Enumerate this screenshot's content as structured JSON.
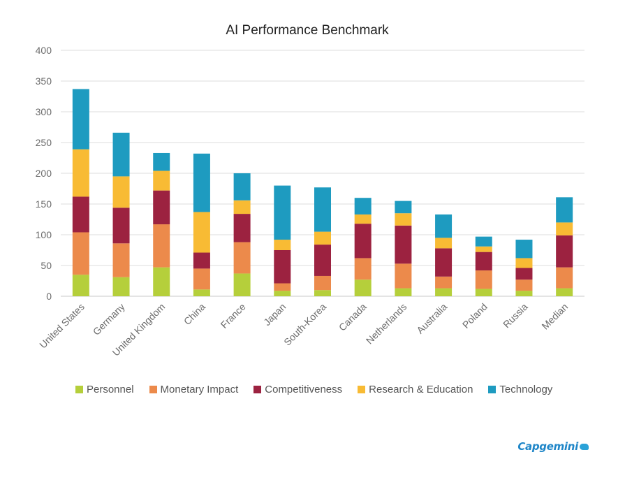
{
  "chart_data": {
    "type": "bar",
    "stacked": true,
    "title": "AI Performance Benchmark",
    "xlabel": "",
    "ylabel": "",
    "ylim": [
      0,
      400
    ],
    "yticks": [
      0,
      50,
      100,
      150,
      200,
      250,
      300,
      350,
      400
    ],
    "grid": true,
    "legend_position": "bottom",
    "categories": [
      "United States",
      "Germany",
      "United Kingdom",
      "China",
      "France",
      "Japan",
      "South-Korea",
      "Canada",
      "Netherlands",
      "Australia",
      "Poland",
      "Russia",
      "Median"
    ],
    "series": [
      {
        "name": "Personnel",
        "color": "#b5cf3b",
        "values": [
          35,
          31,
          47,
          11,
          37,
          9,
          10,
          27,
          13,
          13,
          12,
          9,
          13
        ]
      },
      {
        "name": "Monetary Impact",
        "color": "#ec8a4b",
        "values": [
          69,
          55,
          70,
          34,
          51,
          12,
          23,
          35,
          40,
          19,
          30,
          18,
          34
        ]
      },
      {
        "name": "Competitiveness",
        "color": "#9c2240",
        "values": [
          58,
          58,
          55,
          26,
          46,
          54,
          51,
          56,
          62,
          46,
          30,
          19,
          52
        ]
      },
      {
        "name": "Research & Education",
        "color": "#f8bb34",
        "values": [
          77,
          51,
          32,
          66,
          22,
          17,
          21,
          15,
          20,
          17,
          9,
          16,
          21
        ]
      },
      {
        "name": "Technology",
        "color": "#1e9bc0",
        "values": [
          98,
          71,
          29,
          95,
          44,
          88,
          72,
          27,
          20,
          38,
          16,
          30,
          41
        ]
      }
    ]
  },
  "brand": {
    "name": "Capgemini"
  }
}
